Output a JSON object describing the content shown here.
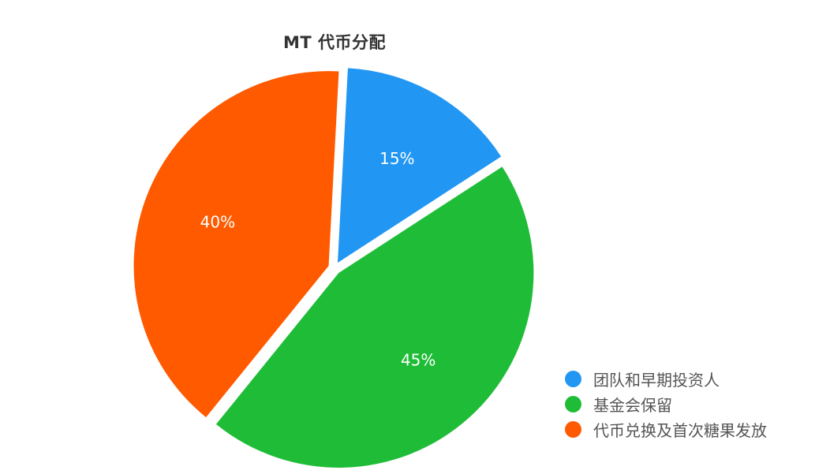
{
  "chart_data": {
    "type": "pie",
    "title": "MT 代币分配",
    "slices": [
      {
        "name": "团队和早期投资人",
        "value": 15,
        "label": "15%",
        "color": "#2196f3"
      },
      {
        "name": "基金会保留",
        "value": 45,
        "label": "45%",
        "color": "#1fbd37"
      },
      {
        "name": "代币兑换及首次糖果发放",
        "value": 40,
        "label": "40%",
        "color": "#ff5a00"
      }
    ],
    "legend_position": "bottom-right"
  }
}
